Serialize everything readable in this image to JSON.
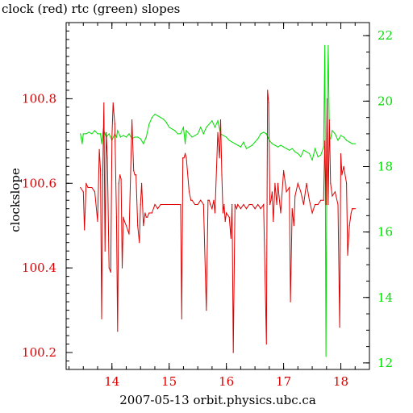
{
  "chart_data": {
    "type": "line",
    "title": "clock (red) rtc (green) slopes",
    "xlabel": "2007-05-13 orbit.physics.ubc.ca",
    "ylabel": "clockslope",
    "xlim": [
      13.2,
      18.5
    ],
    "x_ticks": [
      14,
      15,
      16,
      17,
      18
    ],
    "x_tick_labels": [
      "14",
      "15",
      "16",
      "17",
      "18"
    ],
    "y_left": {
      "lim": [
        100.16,
        100.98
      ],
      "ticks": [
        100.2,
        100.4,
        100.6,
        100.8
      ],
      "tick_labels": [
        "100.2",
        "100.4",
        "100.6",
        "100.8"
      ]
    },
    "y_right": {
      "lim": [
        11.8,
        22.4
      ],
      "ticks": [
        12,
        14,
        16,
        18,
        20,
        22
      ],
      "tick_labels": [
        "12",
        "14",
        "16",
        "18",
        "20",
        "22"
      ]
    },
    "colors": {
      "clock": "#dd0000",
      "rtc": "#00dd00",
      "axes": "#000000"
    },
    "grid": false,
    "series": [
      {
        "name": "clock",
        "axis": "left",
        "color": "#dd0000",
        "x": [
          13.45,
          13.5,
          13.52,
          13.55,
          13.58,
          13.6,
          13.65,
          13.7,
          13.75,
          13.78,
          13.8,
          13.82,
          13.84,
          13.86,
          13.88,
          13.9,
          13.92,
          13.95,
          13.98,
          14.0,
          14.02,
          14.05,
          14.08,
          14.1,
          14.12,
          14.14,
          14.16,
          14.18,
          14.2,
          14.22,
          14.25,
          14.3,
          14.35,
          14.38,
          14.4,
          14.42,
          14.45,
          14.48,
          14.5,
          14.52,
          14.55,
          14.58,
          14.6,
          14.62,
          14.65,
          14.7,
          14.75,
          14.8,
          14.85,
          14.9,
          14.95,
          15.0,
          15.05,
          15.1,
          15.15,
          15.2,
          15.22,
          15.24,
          15.26,
          15.28,
          15.3,
          15.35,
          15.38,
          15.4,
          15.45,
          15.5,
          15.55,
          15.6,
          15.65,
          15.68,
          15.7,
          15.72,
          15.75,
          15.78,
          15.8,
          15.85,
          15.88,
          15.9,
          15.92,
          15.94,
          15.96,
          15.98,
          16.0,
          16.05,
          16.08,
          16.1,
          16.12,
          16.15,
          16.18,
          16.2,
          16.25,
          16.3,
          16.35,
          16.4,
          16.45,
          16.5,
          16.55,
          16.6,
          16.65,
          16.7,
          16.72,
          16.74,
          16.76,
          16.78,
          16.8,
          16.82,
          16.85,
          16.88,
          16.9,
          16.92,
          16.95,
          17.0,
          17.05,
          17.1,
          17.12,
          17.15,
          17.18,
          17.2,
          17.25,
          17.3,
          17.35,
          17.4,
          17.45,
          17.5,
          17.55,
          17.6,
          17.65,
          17.7,
          17.72,
          17.74,
          17.76,
          17.78,
          17.8,
          17.82,
          17.85,
          17.9,
          17.95,
          17.98,
          18.0,
          18.02,
          18.05,
          18.1,
          18.12,
          18.15,
          18.18,
          18.2,
          18.22,
          18.25
        ],
        "y": [
          100.59,
          100.58,
          100.49,
          100.6,
          100.59,
          100.59,
          100.59,
          100.58,
          100.51,
          100.68,
          100.63,
          100.28,
          100.62,
          100.79,
          100.44,
          100.72,
          100.66,
          100.4,
          100.39,
          100.71,
          100.79,
          100.74,
          100.52,
          100.25,
          100.6,
          100.62,
          100.61,
          100.4,
          100.52,
          100.51,
          100.5,
          100.48,
          100.75,
          100.63,
          100.62,
          100.62,
          100.5,
          100.46,
          100.55,
          100.6,
          100.5,
          100.53,
          100.52,
          100.52,
          100.53,
          100.53,
          100.55,
          100.54,
          100.55,
          100.55,
          100.55,
          100.55,
          100.55,
          100.55,
          100.55,
          100.55,
          100.28,
          100.66,
          100.66,
          100.67,
          100.66,
          100.58,
          100.56,
          100.56,
          100.55,
          100.55,
          100.56,
          100.55,
          100.3,
          100.56,
          100.56,
          100.55,
          100.54,
          100.56,
          100.53,
          100.72,
          100.66,
          100.75,
          100.62,
          100.53,
          100.55,
          100.51,
          100.53,
          100.52,
          100.47,
          100.55,
          100.2,
          100.55,
          100.54,
          100.55,
          100.54,
          100.55,
          100.54,
          100.55,
          100.55,
          100.54,
          100.55,
          100.54,
          100.55,
          100.22,
          100.82,
          100.79,
          100.55,
          100.56,
          100.58,
          100.51,
          100.6,
          100.55,
          100.6,
          100.57,
          100.53,
          100.63,
          100.58,
          100.59,
          100.32,
          100.54,
          100.5,
          100.57,
          100.6,
          100.58,
          100.55,
          100.6,
          100.56,
          100.53,
          100.55,
          100.55,
          100.56,
          100.56,
          100.7,
          100.55,
          100.8,
          100.55,
          100.75,
          100.6,
          100.57,
          100.58,
          100.55,
          100.26,
          100.67,
          100.62,
          100.64,
          100.6,
          100.43,
          100.5,
          100.53,
          100.54,
          100.54,
          100.54
        ]
      },
      {
        "name": "rtc",
        "axis": "right",
        "color": "#00dd00",
        "x": [
          13.45,
          13.48,
          13.5,
          13.55,
          13.6,
          13.65,
          13.7,
          13.75,
          13.8,
          13.82,
          13.85,
          13.88,
          13.9,
          13.95,
          14.0,
          14.05,
          14.08,
          14.1,
          14.15,
          14.2,
          14.25,
          14.3,
          14.35,
          14.4,
          14.45,
          14.5,
          14.55,
          14.6,
          14.65,
          14.7,
          14.75,
          14.8,
          14.85,
          14.9,
          14.95,
          15.0,
          15.05,
          15.1,
          15.15,
          15.2,
          15.25,
          15.28,
          15.3,
          15.35,
          15.4,
          15.45,
          15.5,
          15.55,
          15.6,
          15.65,
          15.7,
          15.75,
          15.8,
          15.85,
          15.9,
          15.95,
          16.0,
          16.05,
          16.1,
          16.15,
          16.2,
          16.25,
          16.3,
          16.35,
          16.4,
          16.45,
          16.5,
          16.55,
          16.6,
          16.65,
          16.7,
          16.75,
          16.8,
          16.85,
          16.9,
          16.95,
          17.0,
          17.05,
          17.1,
          17.15,
          17.2,
          17.25,
          17.3,
          17.35,
          17.4,
          17.45,
          17.5,
          17.55,
          17.6,
          17.65,
          17.7,
          17.72,
          17.74,
          17.76,
          17.78,
          17.8,
          17.82,
          17.85,
          17.9,
          17.95,
          18.0,
          18.05,
          18.1,
          18.15,
          18.2,
          18.25
        ],
        "y": [
          19.0,
          18.7,
          19.0,
          19.0,
          19.05,
          19.0,
          19.1,
          19.0,
          19.0,
          18.7,
          19.15,
          19.0,
          18.9,
          19.0,
          18.8,
          19.0,
          18.9,
          19.1,
          18.9,
          18.95,
          18.9,
          19.0,
          18.85,
          18.9,
          18.9,
          18.85,
          18.7,
          18.9,
          19.3,
          19.5,
          19.6,
          19.55,
          19.5,
          19.45,
          19.35,
          19.2,
          19.15,
          19.1,
          19.0,
          19.0,
          19.2,
          18.7,
          19.1,
          19.0,
          18.9,
          18.95,
          19.0,
          19.2,
          19.0,
          19.2,
          19.3,
          19.4,
          19.2,
          19.4,
          19.0,
          18.95,
          18.9,
          18.8,
          18.75,
          18.7,
          18.65,
          18.6,
          18.75,
          18.55,
          18.6,
          18.65,
          18.75,
          18.85,
          19.0,
          19.05,
          19.0,
          18.8,
          18.7,
          18.65,
          18.6,
          18.65,
          18.6,
          18.55,
          18.5,
          18.55,
          18.45,
          18.4,
          18.3,
          18.5,
          18.45,
          18.4,
          18.2,
          18.55,
          18.3,
          18.35,
          18.6,
          21.7,
          12.2,
          19.3,
          21.7,
          18.9,
          18.85,
          19.1,
          19.0,
          18.8,
          18.95,
          18.9,
          18.8,
          18.75,
          18.7,
          18.7
        ]
      }
    ]
  }
}
